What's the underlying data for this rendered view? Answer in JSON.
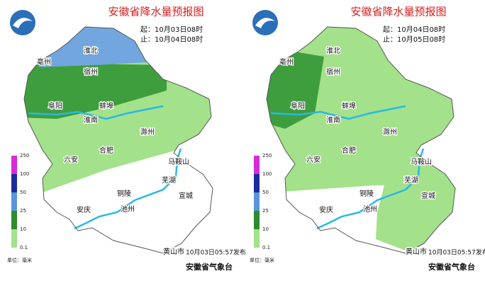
{
  "maps": [
    {
      "title": "安徽省降水量预报图",
      "start": "起：10月03日08时",
      "end": "止：10月04日08时",
      "cities": [
        "淮北",
        "亳州",
        "宿州",
        "阜阳",
        "蚌埠",
        "淮南",
        "滁州",
        "六安",
        "合肥",
        "马鞍山",
        "芜湖",
        "铜陵",
        "宣城",
        "安庆",
        "池州",
        "黄山市"
      ],
      "legend": {
        "ticks": [
          250,
          100,
          50,
          25,
          10,
          0.1
        ],
        "unit": "单位：毫米"
      },
      "issued": "10月03日05:57发布",
      "issuer": "安徽省气象台"
    },
    {
      "title": "安徽省降水量预报图",
      "start": "起：10月04日08时",
      "end": "止：10月05日08时",
      "cities": [
        "淮北",
        "亳州",
        "宿州",
        "阜阳",
        "蚌埠",
        "淮南",
        "滁州",
        "六安",
        "合肥",
        "马鞍山",
        "芜湖",
        "铜陵",
        "宣城",
        "安庆",
        "池州",
        "黄山市"
      ],
      "legend": {
        "ticks": [
          250,
          100,
          50,
          25,
          10,
          0.1
        ],
        "unit": "单位：毫米"
      },
      "issued": "10月03日05:57发布",
      "issuer": "安徽省气象台"
    }
  ]
}
